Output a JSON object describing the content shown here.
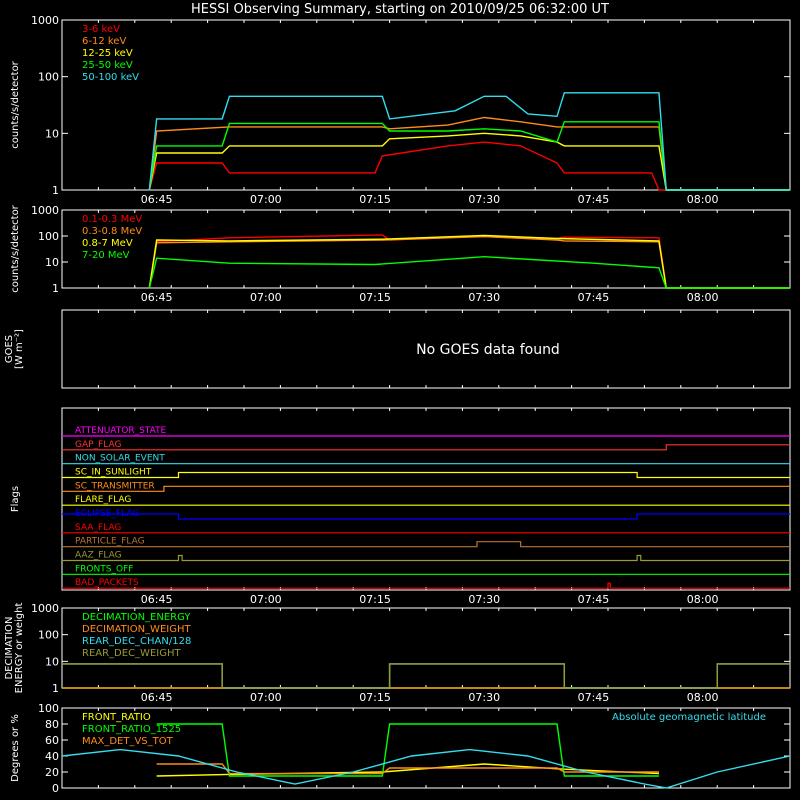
{
  "title": "HESSI Observing Summary, starting on 2010/09/25 06:32:00 UT",
  "colors": {
    "background": "#000000",
    "axis": "#ffffff",
    "red": "#ff0000",
    "orange": "#ff8c1a",
    "yellow": "#ffff00",
    "green": "#00ff00",
    "cyan": "#33ddee",
    "magenta": "#ff00ff",
    "blue": "#0000ff",
    "brown": "#b87333",
    "olive": "#9a9a33"
  },
  "time_ticks": [
    "06:45",
    "07:00",
    "07:15",
    "07:30",
    "07:45",
    "08:00"
  ],
  "chart_data": [
    {
      "id": "lc_low",
      "type": "line",
      "ylabel": "counts/s/detector",
      "yscale": "log",
      "ylim": [
        1,
        1000
      ],
      "xlim": [
        "06:32",
        "08:12"
      ],
      "yticks": [
        "1",
        "10",
        "100",
        "1000"
      ],
      "series": [
        {
          "name": "3-6 keV",
          "color": "#ff0000",
          "x": [
            "06:44",
            "06:45",
            "06:54",
            "06:55",
            "07:15",
            "07:16",
            "07:25",
            "07:30",
            "07:35",
            "07:40",
            "07:41",
            "07:47",
            "07:48",
            "07:53",
            "07:54",
            "08:12"
          ],
          "y": [
            1,
            3,
            3,
            2,
            2,
            4,
            6,
            7,
            6,
            3,
            2,
            2,
            2,
            2,
            1,
            1
          ]
        },
        {
          "name": "6-12 keV",
          "color": "#ff8c1a",
          "x": [
            "06:44",
            "06:45",
            "06:55",
            "07:16",
            "07:17",
            "07:25",
            "07:30",
            "07:35",
            "07:40",
            "07:41",
            "07:54",
            "07:55",
            "08:12"
          ],
          "y": [
            1,
            11,
            13,
            13,
            12,
            14,
            19,
            16,
            13,
            13,
            13,
            1,
            1
          ]
        },
        {
          "name": "12-25 keV",
          "color": "#ffff00",
          "x": [
            "06:44",
            "06:45",
            "06:54",
            "06:55",
            "07:16",
            "07:17",
            "07:25",
            "07:30",
            "07:35",
            "07:40",
            "07:41",
            "07:54",
            "07:55",
            "08:12"
          ],
          "y": [
            1,
            4.5,
            4.5,
            6,
            6,
            8,
            9,
            10,
            9,
            7,
            6,
            6,
            1,
            1
          ]
        },
        {
          "name": "25-50 keV",
          "color": "#00ff00",
          "x": [
            "06:44",
            "06:45",
            "06:54",
            "06:55",
            "07:16",
            "07:17",
            "07:25",
            "07:30",
            "07:35",
            "07:40",
            "07:41",
            "07:54",
            "07:55",
            "08:12"
          ],
          "y": [
            1,
            6,
            6,
            15,
            15,
            11,
            11,
            12,
            11,
            7,
            16,
            16,
            1,
            1
          ]
        },
        {
          "name": "50-100 keV",
          "color": "#33ddee",
          "x": [
            "06:44",
            "06:45",
            "06:54",
            "06:55",
            "07:16",
            "07:17",
            "07:26",
            "07:30",
            "07:33",
            "07:36",
            "07:40",
            "07:41",
            "07:54",
            "07:55",
            "08:12"
          ],
          "y": [
            1,
            18,
            18,
            45,
            45,
            18,
            25,
            45,
            45,
            22,
            20,
            52,
            52,
            1,
            1
          ]
        }
      ]
    },
    {
      "id": "lc_high",
      "type": "line",
      "ylabel": "counts/s/detector",
      "yscale": "log",
      "ylim": [
        1,
        1000
      ],
      "xlim": [
        "06:32",
        "08:12"
      ],
      "yticks": [
        "1",
        "10",
        "100",
        "1000"
      ],
      "series": [
        {
          "name": "0.1-0.3 MeV",
          "color": "#ff0000",
          "x": [
            "06:44",
            "06:45",
            "06:55",
            "07:16",
            "07:17",
            "07:30",
            "07:40",
            "07:41",
            "07:54",
            "07:55",
            "08:12"
          ],
          "y": [
            1,
            60,
            85,
            110,
            70,
            100,
            80,
            90,
            85,
            1,
            1
          ]
        },
        {
          "name": "0.3-0.8 MeV",
          "color": "#ff8c1a",
          "x": [
            "06:44",
            "06:45",
            "06:55",
            "07:16",
            "07:30",
            "07:40",
            "07:41",
            "07:54",
            "07:55",
            "08:12"
          ],
          "y": [
            1,
            55,
            60,
            70,
            95,
            70,
            65,
            60,
            1,
            1
          ]
        },
        {
          "name": "0.8-7 MeV",
          "color": "#ffff00",
          "x": [
            "06:44",
            "06:45",
            "06:55",
            "07:16",
            "07:30",
            "07:40",
            "07:54",
            "07:55",
            "08:12"
          ],
          "y": [
            1,
            70,
            65,
            75,
            105,
            80,
            65,
            1,
            1
          ]
        },
        {
          "name": "7-20 MeV",
          "color": "#00ff00",
          "x": [
            "06:44",
            "06:45",
            "06:55",
            "07:15",
            "07:30",
            "07:45",
            "07:54",
            "07:55",
            "08:12"
          ],
          "y": [
            1,
            14,
            9,
            8,
            16,
            9,
            6,
            1,
            1
          ]
        }
      ]
    },
    {
      "id": "goes",
      "type": "line",
      "ylabel": "GOES",
      "ylabel2": "[W m⁻²]",
      "message": "No GOES data found"
    },
    {
      "id": "flags",
      "type": "line",
      "ylabel": "Flags",
      "xlim": [
        "06:32",
        "08:12"
      ],
      "series": [
        {
          "name": "ATTENUATOR_STATE",
          "color": "#ff00ff",
          "x": [
            "06:32",
            "08:12"
          ],
          "y": [
            0,
            0
          ]
        },
        {
          "name": "GAP_FLAG",
          "color": "#ff3333",
          "x": [
            "06:32",
            "07:55",
            "07:55",
            "08:12"
          ],
          "y": [
            0,
            0,
            1,
            1
          ]
        },
        {
          "name": "NON_SOLAR_EVENT",
          "color": "#33ddee",
          "x": [
            "06:32",
            "08:12"
          ],
          "y": [
            0,
            0
          ]
        },
        {
          "name": "SC_IN_SUNLIGHT",
          "color": "#ffff00",
          "x": [
            "06:32",
            "06:48",
            "06:48",
            "07:51",
            "07:51",
            "08:12"
          ],
          "y": [
            0,
            0,
            1,
            1,
            0,
            0
          ]
        },
        {
          "name": "SC_TRANSMITTER",
          "color": "#ff8c1a",
          "x": [
            "06:32",
            "06:46",
            "06:46",
            "08:12"
          ],
          "y": [
            0,
            0,
            1,
            1
          ]
        },
        {
          "name": "FLARE_FLAG",
          "color": "#ffff00",
          "x": [
            "06:32",
            "08:12"
          ],
          "y": [
            0,
            0
          ]
        },
        {
          "name": "ECLIPSE_FLAG",
          "color": "#0000ff",
          "x": [
            "06:32",
            "06:48",
            "06:48",
            "07:51",
            "07:51",
            "08:12"
          ],
          "y": [
            1,
            1,
            0,
            0,
            1,
            1
          ]
        },
        {
          "name": "SAA_FLAG",
          "color": "#ff0000",
          "x": [
            "06:32",
            "08:12"
          ],
          "y": [
            0,
            0
          ]
        },
        {
          "name": "PARTICLE_FLAG",
          "color": "#b87333",
          "x": [
            "06:32",
            "07:29",
            "07:29",
            "07:35",
            "07:35",
            "08:12"
          ],
          "y": [
            0,
            0,
            1,
            1,
            0,
            0
          ]
        },
        {
          "name": "AAZ_FLAG",
          "color": "#9a9a33",
          "x": [
            "06:32",
            "06:48",
            "06:48",
            "06:48.5",
            "06:48.5",
            "07:51",
            "07:51",
            "07:51.5",
            "07:51.5",
            "08:12"
          ],
          "y": [
            0,
            0,
            1,
            1,
            0,
            0,
            1,
            1,
            0,
            0
          ]
        },
        {
          "name": "FRONTS_OFF",
          "color": "#00ff00",
          "x": [
            "06:32",
            "08:12"
          ],
          "y": [
            0,
            0
          ]
        },
        {
          "name": "BAD_PACKETS",
          "color": "#ff0000",
          "x": [
            "06:32",
            "07:47",
            "07:47",
            "07:47.3",
            "07:47.3",
            "08:12"
          ],
          "y": [
            0,
            0,
            1,
            1,
            0,
            0
          ]
        }
      ]
    },
    {
      "id": "decimation",
      "type": "line",
      "ylabel": "DECIMATION",
      "ylabel2": "ENERGY or weight",
      "yscale": "log",
      "ylim": [
        1,
        1000
      ],
      "xlim": [
        "06:32",
        "08:12"
      ],
      "yticks": [
        "1",
        "10",
        "100",
        "1000"
      ],
      "series": [
        {
          "name": "DECIMATION_ENERGY",
          "color": "#00ff00",
          "x": [
            "06:32",
            "08:12"
          ],
          "y": [
            1,
            1
          ]
        },
        {
          "name": "DECIMATION_WEIGHT",
          "color": "#ff8c1a",
          "x": [
            "06:32",
            "08:12"
          ],
          "y": [
            1,
            1
          ]
        },
        {
          "name": "REAR_DEC_CHAN/128",
          "color": "#33ddee",
          "x": [
            "06:32",
            "06:54",
            "06:54",
            "07:17",
            "07:17",
            "07:41",
            "07:41",
            "07:55",
            "07:55",
            "08:02",
            "08:02",
            "08:12"
          ],
          "y": [
            8,
            8,
            1,
            1,
            8,
            8,
            1,
            1,
            1,
            1,
            8,
            8
          ]
        },
        {
          "name": "REAR_DEC_WEIGHT",
          "color": "#9a9a33",
          "x": [
            "06:32",
            "06:54",
            "06:54",
            "07:17",
            "07:17",
            "07:41",
            "07:41",
            "07:55",
            "07:55",
            "08:02",
            "08:02",
            "08:12"
          ],
          "y": [
            8,
            8,
            1,
            1,
            8,
            8,
            1,
            1,
            1,
            1,
            8,
            8
          ]
        }
      ]
    },
    {
      "id": "ratios",
      "type": "line",
      "ylabel": "Degrees or %",
      "ylim": [
        0,
        100
      ],
      "xlim": [
        "06:32",
        "08:12"
      ],
      "yticks": [
        "0",
        "20",
        "40",
        "60",
        "80",
        "100"
      ],
      "annotation": "Absolute geomagnetic latitude",
      "series": [
        {
          "name": "FRONT_RATIO",
          "color": "#ffff00",
          "x": [
            "06:45",
            "06:55",
            "07:16",
            "07:30",
            "07:40",
            "07:54"
          ],
          "y": [
            15,
            17,
            20,
            30,
            24,
            18
          ]
        },
        {
          "name": "FRONT_RATIO_1525",
          "color": "#00ff00",
          "x": [
            "06:45",
            "06:54",
            "06:55",
            "07:16",
            "07:17",
            "07:40",
            "07:41",
            "07:54"
          ],
          "y": [
            80,
            80,
            15,
            15,
            80,
            80,
            15,
            15
          ]
        },
        {
          "name": "MAX_DET_VS_TOT",
          "color": "#ff8c1a",
          "x": [
            "06:45",
            "06:54",
            "06:55",
            "07:16",
            "07:17",
            "07:40",
            "07:41",
            "07:54"
          ],
          "y": [
            30,
            30,
            18,
            18,
            25,
            25,
            20,
            20
          ]
        },
        {
          "name": "Absolute geomagnetic latitude",
          "color": "#33ddee",
          "x": [
            "06:32",
            "06:40",
            "06:48",
            "06:56",
            "07:04",
            "07:12",
            "07:20",
            "07:28",
            "07:36",
            "07:44",
            "07:52",
            "07:55",
            "08:02",
            "08:12"
          ],
          "y": [
            40,
            48,
            40,
            20,
            5,
            20,
            40,
            48,
            40,
            20,
            5,
            0,
            20,
            40
          ]
        }
      ]
    }
  ]
}
